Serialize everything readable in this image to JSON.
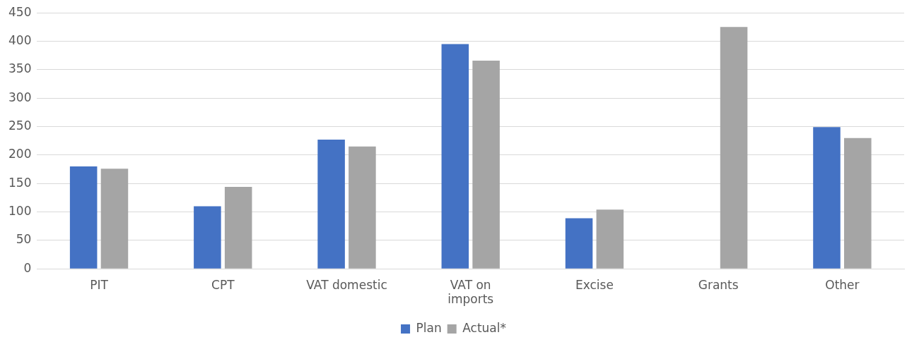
{
  "chart_data": {
    "type": "bar",
    "categories": [
      "PIT",
      "CPT",
      "VAT domestic",
      "VAT on imports",
      "Excise",
      "Grants",
      "Other"
    ],
    "series": [
      {
        "name": "Plan",
        "color": "#4472c4",
        "values": [
          180,
          110,
          227,
          395,
          89,
          null,
          249
        ]
      },
      {
        "name": "Actual*",
        "color": "#a5a5a5",
        "values": [
          176,
          144,
          215,
          366,
          104,
          425,
          230
        ]
      }
    ],
    "ylim": [
      0,
      450
    ],
    "yticks": [
      0,
      50,
      100,
      150,
      200,
      250,
      300,
      350,
      400,
      450
    ],
    "grid": "y",
    "legend": "bottom"
  }
}
